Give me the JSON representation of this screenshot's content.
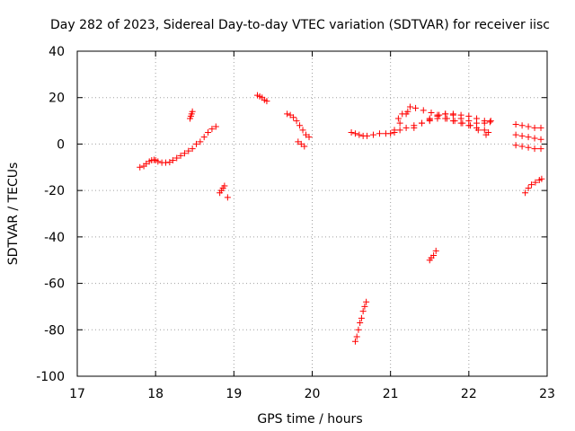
{
  "chart_data": {
    "type": "scatter",
    "title": "Day 282 of 2023, Sidereal Day-to-day VTEC variation (SDTVAR) for receiver iisc",
    "xlabel": "GPS time / hours",
    "ylabel": "SDTVAR / TECUs",
    "xlim": [
      17,
      23
    ],
    "ylim": [
      -100,
      40
    ],
    "xticks": [
      17,
      18,
      19,
      20,
      21,
      22,
      23
    ],
    "yticks": [
      -100,
      -80,
      -60,
      -40,
      -20,
      0,
      20,
      40
    ],
    "xtick_labels": [
      "17",
      "18",
      "19",
      "20",
      "21",
      "22",
      "23"
    ],
    "ytick_labels": [
      "-100",
      "-80",
      "-60",
      "-40",
      "-20",
      "0",
      "20",
      "40"
    ],
    "grid": true,
    "marker": "+",
    "color": "#ff0000",
    "series": [
      {
        "name": "s01",
        "points": [
          [
            17.8,
            -10
          ],
          [
            17.85,
            -9.5
          ],
          [
            17.88,
            -8.5
          ],
          [
            17.92,
            -7.5
          ],
          [
            17.95,
            -7
          ],
          [
            17.98,
            -6.8
          ],
          [
            18.0,
            -7
          ]
        ]
      },
      {
        "name": "s02",
        "points": [
          [
            18.03,
            -7.5
          ],
          [
            18.08,
            -8
          ],
          [
            18.13,
            -8
          ],
          [
            18.18,
            -7.8
          ],
          [
            18.22,
            -7
          ],
          [
            18.27,
            -6
          ],
          [
            18.32,
            -5
          ],
          [
            18.37,
            -4
          ],
          [
            18.42,
            -3
          ],
          [
            18.47,
            -2
          ],
          [
            18.52,
            0
          ],
          [
            18.57,
            1
          ],
          [
            18.62,
            3
          ],
          [
            18.67,
            5
          ],
          [
            18.72,
            6.5
          ],
          [
            18.77,
            7.5
          ]
        ]
      },
      {
        "name": "s03",
        "points": [
          [
            18.44,
            11
          ],
          [
            18.45,
            12
          ],
          [
            18.46,
            13
          ],
          [
            18.47,
            14
          ]
        ]
      },
      {
        "name": "s04",
        "points": [
          [
            18.82,
            -21
          ],
          [
            18.84,
            -20
          ],
          [
            18.86,
            -19
          ],
          [
            18.88,
            -18
          ],
          [
            18.92,
            -23
          ]
        ]
      },
      {
        "name": "s05",
        "points": [
          [
            19.3,
            21
          ],
          [
            19.33,
            20.5
          ],
          [
            19.36,
            20
          ],
          [
            19.39,
            19
          ],
          [
            19.42,
            18.5
          ]
        ]
      },
      {
        "name": "s06",
        "points": [
          [
            19.68,
            13
          ],
          [
            19.72,
            12.5
          ],
          [
            19.76,
            11.5
          ],
          [
            19.8,
            10
          ],
          [
            19.84,
            8
          ],
          [
            19.88,
            6
          ],
          [
            19.92,
            4
          ],
          [
            19.96,
            3
          ]
        ]
      },
      {
        "name": "s07",
        "points": [
          [
            19.82,
            1
          ],
          [
            19.86,
            0
          ],
          [
            19.9,
            -1
          ]
        ]
      },
      {
        "name": "s08",
        "points": [
          [
            20.5,
            5
          ],
          [
            20.55,
            4.5
          ],
          [
            20.6,
            4
          ],
          [
            20.65,
            3.5
          ],
          [
            20.7,
            3.5
          ],
          [
            20.78,
            4
          ],
          [
            20.86,
            4.5
          ],
          [
            20.94,
            4.5
          ],
          [
            21.0,
            4.5
          ]
        ]
      },
      {
        "name": "s09",
        "points": [
          [
            21.05,
            5
          ],
          [
            21.12,
            6
          ],
          [
            21.2,
            7
          ],
          [
            21.3,
            8
          ],
          [
            21.4,
            9
          ],
          [
            21.5,
            10
          ],
          [
            21.6,
            11
          ],
          [
            21.7,
            11
          ],
          [
            21.8,
            10
          ],
          [
            21.9,
            9
          ],
          [
            22.0,
            8
          ],
          [
            22.1,
            7
          ],
          [
            22.2,
            6
          ],
          [
            22.25,
            5
          ]
        ]
      },
      {
        "name": "s10",
        "points": [
          [
            21.05,
            6
          ],
          [
            21.12,
            9
          ],
          [
            21.2,
            13
          ],
          [
            21.25,
            16
          ],
          [
            21.32,
            15.5
          ],
          [
            21.42,
            14.5
          ],
          [
            21.52,
            13.5
          ],
          [
            21.62,
            12.5
          ],
          [
            21.72,
            11
          ],
          [
            21.82,
            10
          ],
          [
            21.92,
            9
          ],
          [
            22.02,
            8
          ],
          [
            22.12,
            6
          ],
          [
            22.22,
            4
          ]
        ]
      },
      {
        "name": "s11",
        "points": [
          [
            21.1,
            11
          ],
          [
            21.15,
            13
          ],
          [
            21.22,
            14
          ]
        ]
      },
      {
        "name": "s12",
        "points": [
          [
            21.3,
            7
          ],
          [
            21.4,
            9
          ],
          [
            21.5,
            10.5
          ],
          [
            21.6,
            12
          ],
          [
            21.7,
            13
          ],
          [
            21.8,
            13
          ],
          [
            21.9,
            12.5
          ],
          [
            22.0,
            12
          ],
          [
            22.1,
            11
          ],
          [
            22.2,
            10
          ],
          [
            22.28,
            10
          ]
        ]
      },
      {
        "name": "s13",
        "points": [
          [
            21.5,
            11
          ],
          [
            21.6,
            12.5
          ],
          [
            21.7,
            13
          ],
          [
            21.8,
            12.5
          ],
          [
            21.9,
            11
          ],
          [
            22.0,
            10
          ],
          [
            22.1,
            9
          ],
          [
            22.2,
            9
          ],
          [
            22.27,
            9.5
          ]
        ]
      },
      {
        "name": "s14",
        "points": [
          [
            20.55,
            -85
          ],
          [
            20.57,
            -83
          ],
          [
            20.59,
            -80
          ],
          [
            20.61,
            -77
          ],
          [
            20.63,
            -75
          ],
          [
            20.65,
            -72
          ],
          [
            20.67,
            -70
          ],
          [
            20.69,
            -68
          ]
        ]
      },
      {
        "name": "s15",
        "points": [
          [
            21.5,
            -50
          ],
          [
            21.52,
            -49
          ],
          [
            21.55,
            -48
          ],
          [
            21.58,
            -46
          ]
        ]
      },
      {
        "name": "s16",
        "points": [
          [
            22.6,
            8.5
          ],
          [
            22.68,
            8
          ],
          [
            22.76,
            7.5
          ],
          [
            22.84,
            7
          ],
          [
            22.92,
            7
          ]
        ]
      },
      {
        "name": "s17",
        "points": [
          [
            22.6,
            4
          ],
          [
            22.68,
            3.5
          ],
          [
            22.76,
            3
          ],
          [
            22.84,
            2.5
          ],
          [
            22.92,
            2
          ]
        ]
      },
      {
        "name": "s18",
        "points": [
          [
            22.6,
            -0.5
          ],
          [
            22.68,
            -1
          ],
          [
            22.76,
            -1.5
          ],
          [
            22.84,
            -2
          ],
          [
            22.92,
            -2
          ]
        ]
      },
      {
        "name": "s19",
        "points": [
          [
            22.72,
            -21
          ],
          [
            22.76,
            -19
          ],
          [
            22.8,
            -17.5
          ],
          [
            22.85,
            -16.5
          ],
          [
            22.9,
            -15.5
          ],
          [
            22.93,
            -15
          ]
        ]
      }
    ]
  }
}
